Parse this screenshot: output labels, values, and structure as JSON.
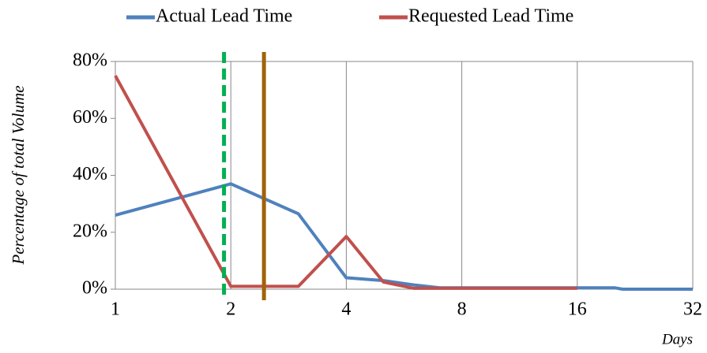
{
  "chart_data": {
    "type": "line",
    "x_label": "Days",
    "y_label": "Percentage of total Volume",
    "xlim": [
      1,
      32
    ],
    "xticks": [
      1,
      2,
      4,
      8,
      16,
      32
    ],
    "xscale": "log2",
    "ylim": [
      0,
      80
    ],
    "yticks": [
      {
        "value": 0,
        "label": "0%"
      },
      {
        "value": 20,
        "label": "20%"
      },
      {
        "value": 40,
        "label": "40%"
      },
      {
        "value": 60,
        "label": "60%"
      },
      {
        "value": 80,
        "label": "80%"
      }
    ],
    "grid": "x",
    "legend": "top",
    "series": [
      {
        "name": "Actual Lead Time",
        "color": "#4f81bd",
        "x": [
          1,
          2,
          3,
          4,
          5,
          6,
          7,
          20,
          21,
          32
        ],
        "values": [
          26,
          37,
          26.5,
          4,
          3,
          1.5,
          0.5,
          0.5,
          0,
          0
        ]
      },
      {
        "name": "Requested Lead Time",
        "color": "#c0504d",
        "x": [
          1,
          2,
          3,
          4,
          5,
          6,
          16
        ],
        "values": [
          75,
          1,
          1,
          18.5,
          2.5,
          0.3,
          0.3
        ]
      }
    ],
    "vlines": [
      {
        "x": 1.92,
        "color": "#00b050",
        "dashed": true
      },
      {
        "x": 2.44,
        "color": "#a0620a",
        "dashed": false
      }
    ]
  }
}
